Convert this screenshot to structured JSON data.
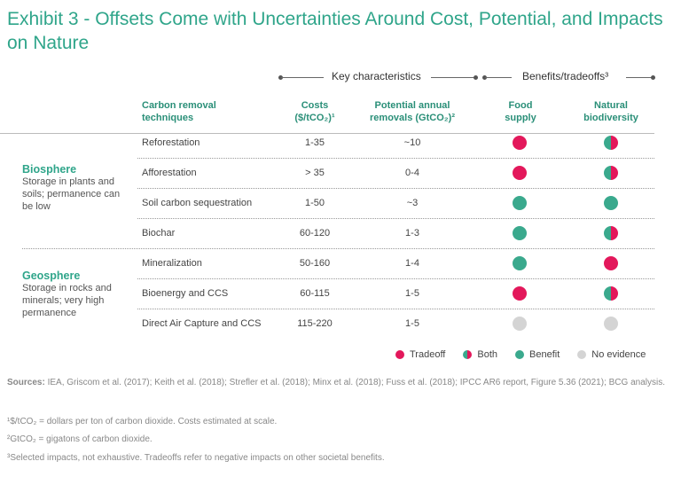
{
  "title": "Exhibit 3 - Offsets Come with Uncertainties Around Cost, Potential, and Impacts on Nature",
  "colors": {
    "tradeoff": "#e3185b",
    "benefit": "#3aa98d",
    "no_evidence": "#d4d4d4",
    "accent": "#2fa58a"
  },
  "group_headers": {
    "key": "Key characteristics",
    "benefits": "Benefits/tradeoffs³"
  },
  "columns": {
    "technique": [
      "Carbon removal",
      "techniques"
    ],
    "costs": [
      "Costs",
      "($/tCO₂)¹"
    ],
    "removals": [
      "Potential annual",
      "removals (GtCO₂)²"
    ],
    "food": [
      "Food",
      "supply"
    ],
    "bio": [
      "Natural",
      "biodiversity"
    ]
  },
  "groups": [
    {
      "name": "Biosphere",
      "description": "Storage in plants and soils; permanence can be low"
    },
    {
      "name": "Geosphere",
      "description": "Storage in rocks and minerals; very high permanence"
    }
  ],
  "rows": [
    {
      "technique": "Reforestation",
      "costs": "1-35",
      "removals": "~10",
      "food": "tradeoff",
      "bio": "both"
    },
    {
      "technique": "Afforestation",
      "costs": "> 35",
      "removals": "0-4",
      "food": "tradeoff",
      "bio": "both"
    },
    {
      "technique": "Soil carbon sequestration",
      "costs": "1-50",
      "removals": "~3",
      "food": "benefit",
      "bio": "benefit"
    },
    {
      "technique": "Biochar",
      "costs": "60-120",
      "removals": "1-3",
      "food": "benefit",
      "bio": "both"
    },
    {
      "technique": "Mineralization",
      "costs": "50-160",
      "removals": "1-4",
      "food": "benefit",
      "bio": "tradeoff"
    },
    {
      "technique": "Bioenergy and CCS",
      "costs": "60-115",
      "removals": "1-5",
      "food": "tradeoff",
      "bio": "both"
    },
    {
      "technique": "Direct Air Capture and CCS",
      "costs": "115-220",
      "removals": "1-5",
      "food": "no_evidence",
      "bio": "no_evidence"
    }
  ],
  "legend": [
    {
      "key": "tradeoff",
      "label": "Tradeoff"
    },
    {
      "key": "both",
      "label": "Both"
    },
    {
      "key": "benefit",
      "label": "Benefit"
    },
    {
      "key": "no_evidence",
      "label": "No evidence"
    }
  ],
  "sources": {
    "label": "Sources:",
    "text": " IEA, Griscom et al. (2017); Keith et al. (2018); Strefler et al. (2018); Minx et al. (2018); Fuss et al. (2018); IPCC AR6 report, Figure 5.36 (2021); BCG analysis."
  },
  "footnotes": [
    "¹$/tCO₂ = dollars per ton of carbon dioxide. Costs estimated at scale.",
    "²GtCO₂ = gigatons of carbon dioxide.",
    "³Selected impacts, not exhaustive. Tradeoffs refer to negative impacts on other societal benefits."
  ]
}
